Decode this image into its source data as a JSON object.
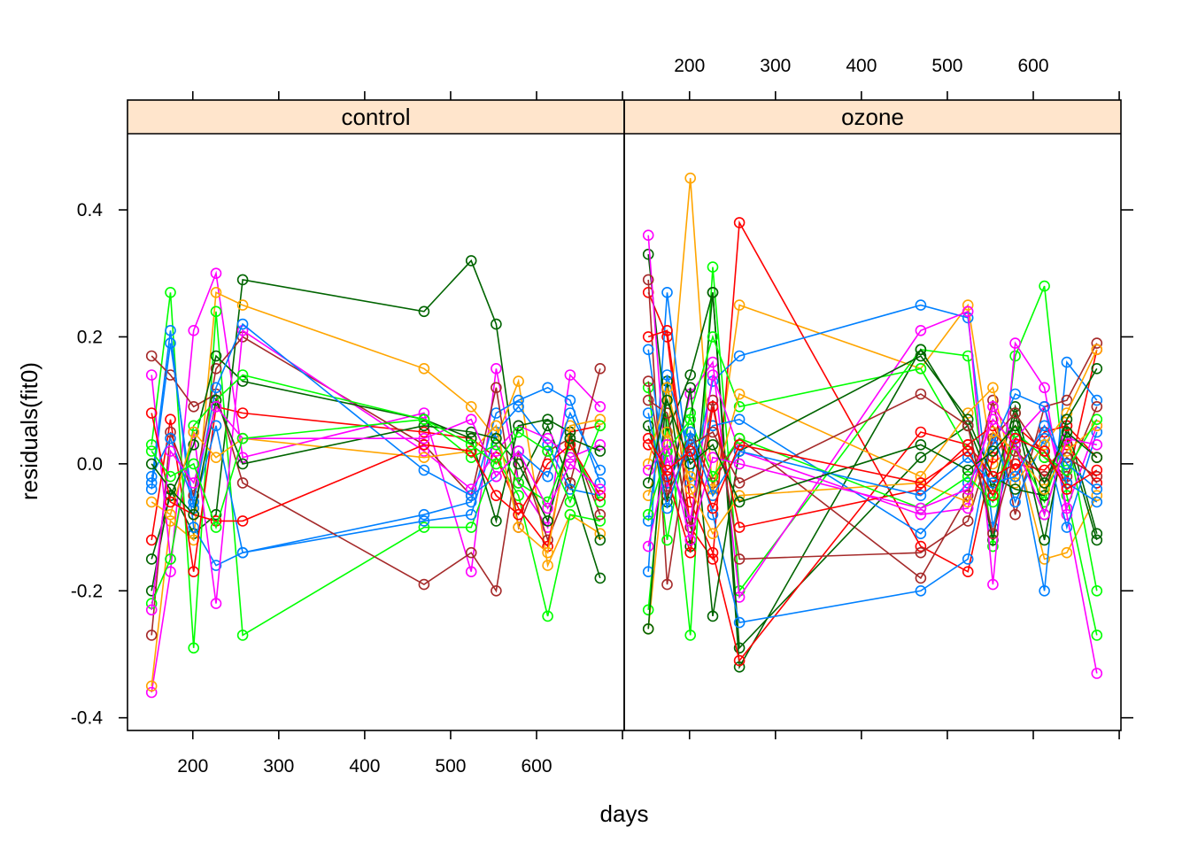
{
  "chart_data": {
    "type": "line",
    "xlabel": "days",
    "ylabel": "residuals(fit0)",
    "xlim": [
      124,
      702
    ],
    "ylim": [
      -0.42,
      0.52
    ],
    "x_ticks": [
      200,
      300,
      400,
      500,
      600
    ],
    "x_tick_labels": [
      "200",
      "300",
      "400",
      "500",
      "600"
    ],
    "y_ticks": [
      -0.4,
      -0.2,
      0.0,
      0.2,
      0.4
    ],
    "y_tick_labels": [
      "-0.4",
      "-0.2",
      "0.0",
      "0.2",
      "0.4"
    ],
    "x_measurement_days": [
      152,
      174,
      201,
      227,
      258,
      469,
      524,
      553,
      579,
      613,
      639,
      674
    ],
    "grid": false,
    "palette": [
      "#0080ff",
      "#ff00ff",
      "#006400",
      "#ff0000",
      "#ffa500",
      "#00ff00",
      "#a52a2a"
    ],
    "marker": "open-circle",
    "panels": [
      {
        "label": "control",
        "strip_color": "#ffe5cc",
        "series": [
          {
            "color": "#006400",
            "values": [
              -0.2,
              -0.04,
              -0.11,
              -0.08,
              0.29,
              0.24,
              0.32,
              0.22,
              -0.03,
              0.06,
              -0.03,
              -0.18
            ]
          },
          {
            "color": "#ff00ff",
            "values": [
              -0.36,
              -0.17,
              0.21,
              0.3,
              0.01,
              0.08,
              -0.17,
              0.15,
              -0.03,
              -0.1,
              0.14,
              0.09
            ]
          },
          {
            "color": "#ffa500",
            "values": [
              -0.35,
              -0.09,
              -0.12,
              0.27,
              0.25,
              0.15,
              0.09,
              0.04,
              0.13,
              -0.16,
              -0.08,
              -0.11
            ]
          },
          {
            "color": "#00ff00",
            "values": [
              0.03,
              0.27,
              -0.29,
              0.24,
              -0.27,
              -0.1,
              -0.1,
              0.01,
              -0.05,
              -0.24,
              -0.08,
              -0.09
            ]
          },
          {
            "color": "#0080ff",
            "values": [
              -0.03,
              0.21,
              -0.1,
              -0.16,
              -0.14,
              -0.08,
              -0.06,
              0.08,
              0.1,
              0.12,
              0.1,
              -0.03
            ]
          },
          {
            "color": "#a52a2a",
            "values": [
              0.17,
              0.14,
              0.09,
              0.11,
              -0.03,
              -0.19,
              -0.14,
              -0.2,
              0.02,
              -0.12,
              -0.03,
              0.15
            ]
          },
          {
            "color": "#ff0000",
            "values": [
              -0.12,
              0.07,
              -0.17,
              0.09,
              0.08,
              0.05,
              0.04,
              0.01,
              -0.07,
              -0.13,
              0.05,
              0.06
            ]
          },
          {
            "color": "#a52a2a",
            "values": [
              -0.27,
              0.05,
              -0.05,
              0.15,
              0.2,
              0.03,
              -0.05,
              0.12,
              -0.1,
              0.02,
              0.04,
              -0.08
            ]
          },
          {
            "color": "#0080ff",
            "values": [
              -0.04,
              0.19,
              -0.07,
              0.06,
              -0.14,
              -0.09,
              -0.08,
              0.05,
              0.09,
              0.03,
              -0.04,
              -0.05
            ]
          },
          {
            "color": "#ff00ff",
            "values": [
              0.14,
              -0.15,
              0.05,
              -0.22,
              0.21,
              0.02,
              -0.04,
              0.02,
              0.06,
              0.04,
              0.01,
              0.03
            ]
          },
          {
            "color": "#006400",
            "values": [
              -0.15,
              -0.05,
              0.03,
              0.17,
              0.13,
              0.07,
              0.04,
              -0.09,
              0.06,
              0.07,
              0.05,
              -0.12
            ]
          },
          {
            "color": "#00ff00",
            "values": [
              -0.22,
              -0.15,
              0.06,
              0.1,
              0.14,
              0.07,
              0.01,
              0.03,
              -0.03,
              -0.06,
              0.03,
              -0.06
            ]
          },
          {
            "color": "#ffa500",
            "values": [
              -0.06,
              -0.08,
              0.05,
              0.01,
              0.04,
              0.01,
              0.02,
              0.06,
              -0.1,
              -0.14,
              0.06,
              0.07
            ]
          },
          {
            "color": "#ff0000",
            "values": [
              0.08,
              -0.06,
              -0.08,
              -0.09,
              -0.09,
              0.03,
              0.02,
              -0.05,
              -0.08,
              0.0,
              0.03,
              -0.05
            ]
          },
          {
            "color": "#0080ff",
            "values": [
              -0.02,
              0.04,
              -0.06,
              0.12,
              0.22,
              -0.01,
              -0.05,
              -0.02,
              0.02,
              -0.02,
              0.08,
              -0.01
            ]
          },
          {
            "color": "#006400",
            "values": [
              0.0,
              -0.04,
              -0.08,
              0.1,
              0.0,
              0.06,
              0.05,
              0.04,
              0.0,
              -0.09,
              0.04,
              0.02
            ]
          },
          {
            "color": "#ff00ff",
            "values": [
              -0.23,
              0.02,
              -0.03,
              0.09,
              0.04,
              0.04,
              0.07,
              -0.02,
              0.02,
              -0.07,
              0.0,
              -0.04
            ]
          },
          {
            "color": "#00ff00",
            "values": [
              0.02,
              -0.02,
              0.0,
              -0.1,
              0.04,
              0.07,
              0.03,
              0.0,
              0.05,
              0.02,
              -0.06,
              0.06
            ]
          }
        ]
      },
      {
        "label": "ozone",
        "strip_color": "#ffe5cc",
        "series": [
          {
            "color": "#ffa500",
            "values": [
              -0.26,
              0.03,
              0.45,
              -0.05,
              0.25,
              0.15,
              0.25,
              0.0,
              0.03,
              -0.15,
              -0.14,
              -0.05
            ]
          },
          {
            "color": "#ff0000",
            "values": [
              0.27,
              0.2,
              -0.1,
              -0.15,
              0.38,
              -0.13,
              -0.17,
              0.01,
              0.06,
              0.02,
              -0.03,
              0.18
            ]
          },
          {
            "color": "#00ff00",
            "values": [
              -0.23,
              0.08,
              -0.27,
              0.31,
              -0.2,
              0.18,
              0.17,
              -0.13,
              0.17,
              0.28,
              -0.05,
              -0.27
            ]
          },
          {
            "color": "#0080ff",
            "values": [
              -0.17,
              0.27,
              -0.03,
              0.13,
              0.17,
              0.25,
              0.23,
              -0.1,
              0.04,
              -0.2,
              0.16,
              0.1
            ]
          },
          {
            "color": "#006400",
            "values": [
              0.33,
              0.05,
              0.14,
              0.27,
              -0.32,
              0.18,
              0.06,
              -0.12,
              0.08,
              -0.12,
              0.06,
              -0.11
            ]
          },
          {
            "color": "#ff00ff",
            "values": [
              0.36,
              -0.04,
              0.11,
              0.16,
              -0.21,
              0.21,
              0.24,
              -0.19,
              0.19,
              0.12,
              -0.08,
              -0.33
            ]
          },
          {
            "color": "#a52a2a",
            "values": [
              0.29,
              -0.19,
              0.05,
              -0.03,
              0.04,
              -0.18,
              -0.05,
              0.1,
              -0.08,
              0.09,
              0.1,
              0.19
            ]
          },
          {
            "color": "#006400",
            "values": [
              -0.26,
              0.13,
              -0.13,
              0.27,
              -0.29,
              0.01,
              0.06,
              -0.04,
              0.09,
              -0.08,
              0.04,
              -0.12
            ]
          },
          {
            "color": "#ff0000",
            "values": [
              0.2,
              0.21,
              -0.06,
              -0.14,
              -0.31,
              0.05,
              0.03,
              0.06,
              -0.01,
              0.05,
              0.06,
              0.01
            ]
          },
          {
            "color": "#0080ff",
            "values": [
              0.18,
              -0.03,
              0.04,
              -0.08,
              -0.25,
              -0.2,
              -0.15,
              0.05,
              -0.06,
              0.04,
              -0.1,
              0.05
            ]
          },
          {
            "color": "#00ff00",
            "values": [
              0.12,
              -0.12,
              0.08,
              0.2,
              0.09,
              0.15,
              0.02,
              -0.05,
              0.03,
              -0.06,
              0.05,
              -0.2
            ]
          },
          {
            "color": "#ffa500",
            "values": [
              -0.05,
              0.05,
              -0.02,
              -0.04,
              0.11,
              -0.02,
              0.08,
              0.12,
              -0.03,
              0.03,
              0.08,
              0.18
            ]
          },
          {
            "color": "#a52a2a",
            "values": [
              0.1,
              0.08,
              -0.1,
              0.1,
              -0.15,
              -0.14,
              -0.09,
              0.04,
              0.08,
              0.01,
              -0.02,
              0.09
            ]
          },
          {
            "color": "#ff00ff",
            "values": [
              -0.13,
              0.01,
              -0.09,
              0.14,
              0.02,
              -0.08,
              -0.07,
              0.09,
              0.04,
              0.09,
              -0.07,
              0.06
            ]
          },
          {
            "color": "#006400",
            "values": [
              0.06,
              -0.06,
              0.12,
              -0.24,
              0.02,
              0.17,
              0.07,
              -0.02,
              -0.04,
              -0.05,
              0.07,
              0.15
            ]
          },
          {
            "color": "#0080ff",
            "values": [
              -0.09,
              0.14,
              0.01,
              0.06,
              0.07,
              -0.11,
              -0.03,
              0.03,
              0.11,
              0.09,
              -0.03,
              -0.06
            ]
          },
          {
            "color": "#ff0000",
            "values": [
              0.03,
              -0.02,
              -0.14,
              0.09,
              -0.1,
              -0.04,
              0.03,
              -0.02,
              0.0,
              -0.01,
              0.03,
              -0.03
            ]
          },
          {
            "color": "#ffa500",
            "values": [
              0.0,
              0.12,
              -0.04,
              -0.11,
              -0.05,
              -0.03,
              -0.06,
              0.05,
              0.02,
              -0.04,
              0.02,
              0.06
            ]
          },
          {
            "color": "#00ff00",
            "values": [
              -0.08,
              0.02,
              0.07,
              -0.02,
              0.04,
              -0.07,
              -0.02,
              -0.06,
              0.05,
              0.01,
              -0.01,
              0.07
            ]
          },
          {
            "color": "#a52a2a",
            "values": [
              0.13,
              -0.05,
              0.03,
              0.05,
              -0.03,
              0.11,
              0.06,
              -0.11,
              0.02,
              -0.02,
              0.01,
              -0.02
            ]
          },
          {
            "color": "#ff00ff",
            "values": [
              -0.01,
              0.03,
              -0.12,
              0.01,
              0.0,
              -0.07,
              -0.04,
              0.07,
              0.03,
              -0.08,
              0.04,
              0.03
            ]
          },
          {
            "color": "#0080ff",
            "values": [
              0.08,
              -0.07,
              0.05,
              -0.05,
              0.02,
              -0.05,
              0.01,
              -0.03,
              -0.02,
              0.06,
              0.0,
              -0.04
            ]
          },
          {
            "color": "#006400",
            "values": [
              -0.03,
              0.1,
              0.0,
              0.03,
              -0.06,
              0.03,
              -0.01,
              0.02,
              0.06,
              -0.03,
              0.05,
              0.01
            ]
          },
          {
            "color": "#ff0000",
            "values": [
              0.04,
              -0.01,
              0.02,
              -0.07,
              0.03,
              -0.03,
              0.02,
              -0.05,
              0.04,
              0.02,
              -0.04,
              -0.01
            ]
          }
        ]
      }
    ]
  }
}
